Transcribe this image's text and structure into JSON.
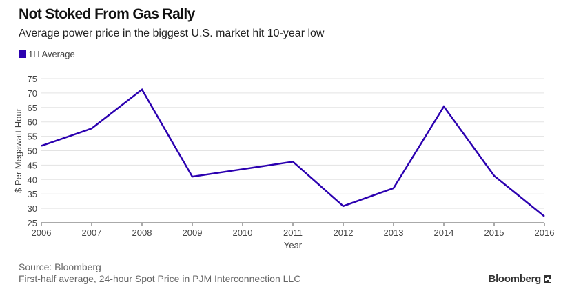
{
  "header": {
    "title": "Not Stoked From Gas Rally",
    "subtitle": "Average power price in the biggest U.S. market hit 10-year low"
  },
  "legend": {
    "label": "1H Average",
    "color": "#2b00b0"
  },
  "footer": {
    "source": "Source: Bloomberg",
    "note": "First-half average, 24-hour Spot Price in PJM Interconnection LLC"
  },
  "brand": {
    "name": "Bloomberg",
    "icon": "bloomberg-chart-icon"
  },
  "chart_data": {
    "type": "line",
    "x": [
      2006,
      2007,
      2008,
      2009,
      2010,
      2011,
      2012,
      2013,
      2014,
      2015,
      2016
    ],
    "x_tick_labels": [
      "2006",
      "2007",
      "2008",
      "2009",
      "2010",
      "2011",
      "2012",
      "2013",
      "2014",
      "2015",
      "2016"
    ],
    "series": [
      {
        "name": "1H Average",
        "color": "#2b00b0",
        "values": [
          51.7,
          57.7,
          71.2,
          41.0,
          43.6,
          46.2,
          30.8,
          37.0,
          65.3,
          41.3,
          27.2
        ]
      }
    ],
    "xlabel": "Year",
    "ylabel": "$ Per Megawatt Hour",
    "ylim": [
      25,
      75
    ],
    "yticks": [
      25,
      30,
      35,
      40,
      45,
      50,
      55,
      60,
      65,
      70,
      75
    ],
    "y_tick_labels": [
      "25",
      "30",
      "35",
      "40",
      "45",
      "50",
      "55",
      "60",
      "65",
      "70",
      "75"
    ],
    "grid": true,
    "legend_position": "top-left"
  }
}
